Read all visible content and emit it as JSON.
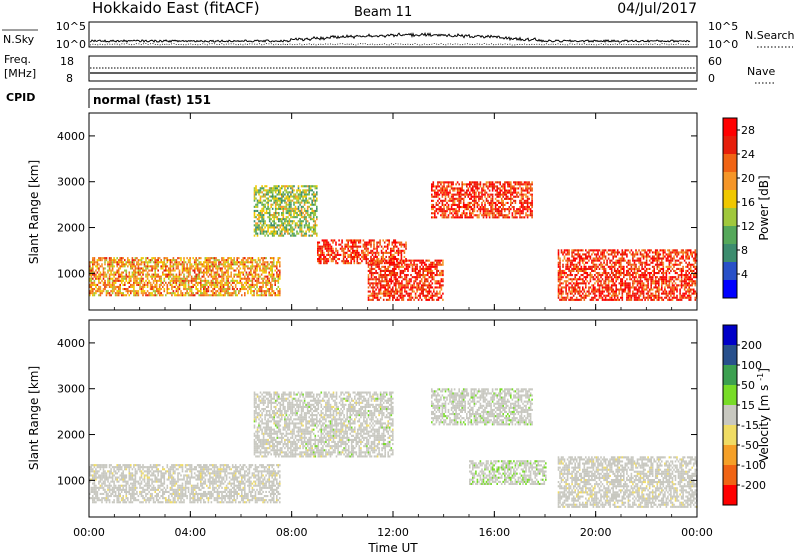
{
  "header": {
    "station": "Hokkaido East (fitACF)",
    "beam": "Beam 11",
    "date": "04/Jul/2017"
  },
  "panels": {
    "nsky": {
      "label": "N.Sky",
      "tick_top": "10^5",
      "tick_bottom": "10^0",
      "right_label": "N.Search",
      "right_tick_top": "10^5",
      "right_tick_bottom": "10^0"
    },
    "freq": {
      "label_line1": "Freq.",
      "label_line2": "[MHz]",
      "tick_top": "18",
      "tick_bottom": "8",
      "right_label": "Nave",
      "right_tick_top": "60",
      "right_tick_bottom": "0"
    },
    "cpid": {
      "label": "CPID",
      "value": "normal (fast) 151"
    }
  },
  "colors": {
    "power": [
      "#0000ff",
      "#2850c8",
      "#3c8c6e",
      "#55a85a",
      "#a0c83c",
      "#f0c800",
      "#f59628",
      "#f06414",
      "#e61e0a",
      "#ff0000"
    ],
    "velocity": [
      "#ff0000",
      "#f06414",
      "#f5a028",
      "#f0dc64",
      "#c8c8c0",
      "#78dc28",
      "#3ca050",
      "#28508c",
      "#0000c8"
    ]
  },
  "chart_data": [
    {
      "type": "heatmap",
      "title": "",
      "xlabel": "",
      "ylabel": "Slant Range [km]",
      "x_ticks": [
        "00:00",
        "04:00",
        "08:00",
        "12:00",
        "16:00",
        "20:00",
        "00:00"
      ],
      "y_ticks": [
        1000,
        2000,
        3000,
        4000
      ],
      "xlim_hours": [
        0,
        24
      ],
      "ylim_km": [
        200,
        4500
      ],
      "colorbar": {
        "label": "Power [dB]",
        "ticks": [
          4,
          8,
          12,
          16,
          20,
          24,
          28
        ],
        "range": [
          0,
          30
        ]
      },
      "echo_regions": [
        {
          "t_start": 0.0,
          "t_end": 7.5,
          "r_min": 500,
          "r_max": 1350,
          "level": "mid"
        },
        {
          "t_start": 6.5,
          "t_end": 9.0,
          "r_min": 1800,
          "r_max": 2900,
          "level": "mid-low"
        },
        {
          "t_start": 9.0,
          "t_end": 12.5,
          "r_min": 1200,
          "r_max": 1700,
          "level": "high"
        },
        {
          "t_start": 11.0,
          "t_end": 14.0,
          "r_min": 400,
          "r_max": 1300,
          "level": "high"
        },
        {
          "t_start": 13.5,
          "t_end": 17.5,
          "r_min": 2200,
          "r_max": 3000,
          "level": "high"
        },
        {
          "t_start": 18.5,
          "t_end": 24.0,
          "r_min": 400,
          "r_max": 1500,
          "level": "high"
        }
      ]
    },
    {
      "type": "heatmap",
      "title": "",
      "xlabel": "Time UT",
      "ylabel": "Slant Range [km]",
      "x_ticks": [
        "00:00",
        "04:00",
        "08:00",
        "12:00",
        "16:00",
        "20:00",
        "00:00"
      ],
      "y_ticks": [
        1000,
        2000,
        3000,
        4000
      ],
      "xlim_hours": [
        0,
        24
      ],
      "ylim_km": [
        200,
        4500
      ],
      "colorbar": {
        "label": "Velocity [m s^-1]",
        "ticks": [
          200,
          100,
          50,
          15,
          -15,
          -50,
          -100,
          -200
        ],
        "range": [
          -250,
          250
        ]
      },
      "echo_regions": [
        {
          "t_start": 0.0,
          "t_end": 7.5,
          "r_min": 500,
          "r_max": 1350,
          "velocity": -5
        },
        {
          "t_start": 6.5,
          "t_end": 12.0,
          "r_min": 1500,
          "r_max": 2900,
          "velocity": 0
        },
        {
          "t_start": 13.5,
          "t_end": 17.5,
          "r_min": 2200,
          "r_max": 3000,
          "velocity": 10
        },
        {
          "t_start": 15.0,
          "t_end": 18.0,
          "r_min": 900,
          "r_max": 1400,
          "velocity": 30
        },
        {
          "t_start": 18.5,
          "t_end": 24.0,
          "r_min": 400,
          "r_max": 1500,
          "velocity": -5
        }
      ]
    }
  ]
}
